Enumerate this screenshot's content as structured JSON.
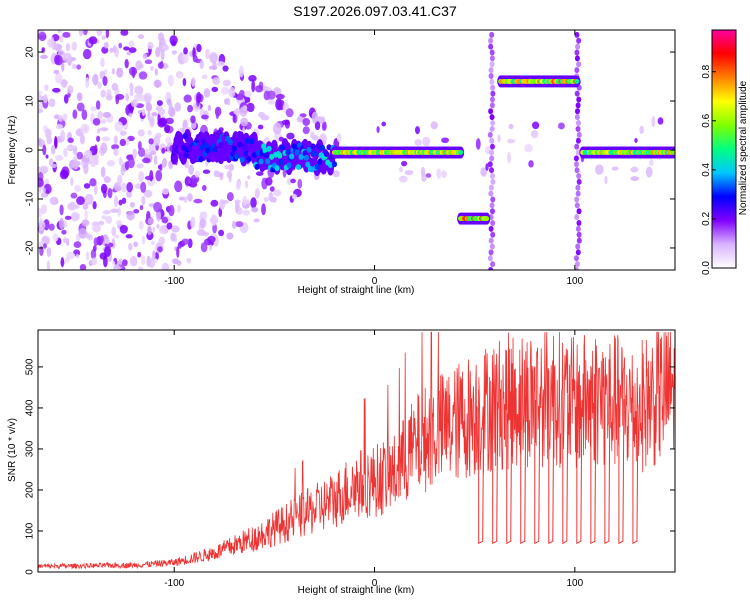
{
  "page": {
    "title": "S197.2026.097.03.41.C37"
  },
  "colors": {
    "snr_line": "#ee3333",
    "axes": "#000000",
    "background": "#ffffff"
  },
  "colormap": {
    "stops": [
      "#ffffff",
      "#d9b3ff",
      "#8000ff",
      "#0000ff",
      "#00c8ff",
      "#00ff80",
      "#80ff00",
      "#ffff00",
      "#ff8000",
      "#ff0000",
      "#ff00a0"
    ]
  },
  "chart_data": [
    {
      "type": "heatmap",
      "title": "S197.2026.097.03.41.C37",
      "xlabel": "Height of straight line (km)",
      "ylabel": "Frequency (Hz)",
      "xlim": [
        -168,
        150
      ],
      "ylim": [
        -24.5,
        24.5
      ],
      "x_ticks": [
        -100,
        0,
        100
      ],
      "y_ticks": [
        -20,
        -10,
        0,
        10,
        20
      ],
      "colorbar": {
        "label": "Normalized spectral amplitude",
        "range": [
          0.0,
          0.97
        ],
        "ticks": [
          0.0,
          0.2,
          0.4,
          0.6,
          0.8
        ]
      },
      "ridges": [
        {
          "x_start": -100,
          "x_end": -60,
          "freq": 0.5,
          "amplitude": 0.35
        },
        {
          "x_start": -60,
          "x_end": -20,
          "freq": -1.5,
          "amplitude": 0.45
        },
        {
          "x_start": -20,
          "x_end": 43,
          "freq": -0.5,
          "amplitude": 0.8
        },
        {
          "x_start": 43,
          "x_end": 56,
          "freq": -14,
          "amplitude": 0.9
        },
        {
          "x_start": 63,
          "x_end": 101,
          "freq": 14,
          "amplitude": 0.85
        },
        {
          "x_start": 104,
          "x_end": 150,
          "freq": -0.5,
          "amplitude": 0.8
        }
      ],
      "spikes": [
        {
          "x": 58.5,
          "freq_range": [
            -24.5,
            24.5
          ]
        },
        {
          "x": 101.5,
          "freq_range": [
            -24.5,
            24.5
          ]
        }
      ]
    },
    {
      "type": "line",
      "xlabel": "Height of straight line (km)",
      "ylabel": "SNR (10 * v/v)",
      "xlim": [
        -168,
        150
      ],
      "ylim": [
        0,
        590
      ],
      "x_ticks": [
        -100,
        0,
        100
      ],
      "y_ticks": [
        0,
        100,
        200,
        300,
        400,
        500
      ],
      "series": [
        {
          "name": "SNR",
          "envelope": {
            "x": [
              -168,
              -120,
              -100,
              -80,
              -60,
              -40,
              -20,
              -10,
              0,
              10,
              20,
              30,
              40,
              50,
              60,
              70,
              80,
              90,
              100,
              110,
              120,
              130,
              140,
              150
            ],
            "y": [
              15,
              18,
              25,
              50,
              90,
              140,
              190,
              230,
              240,
              260,
              330,
              370,
              390,
              420,
              440,
              455,
              460,
              470,
              440,
              460,
              450,
              430,
              460,
              490
            ]
          },
          "dropouts": {
            "x": [
              52,
              59,
              66,
              73,
              80,
              87,
              94,
              101,
              108,
              115,
              122,
              129
            ],
            "y": 70
          },
          "x_end_dropouts": 130
        }
      ]
    }
  ]
}
